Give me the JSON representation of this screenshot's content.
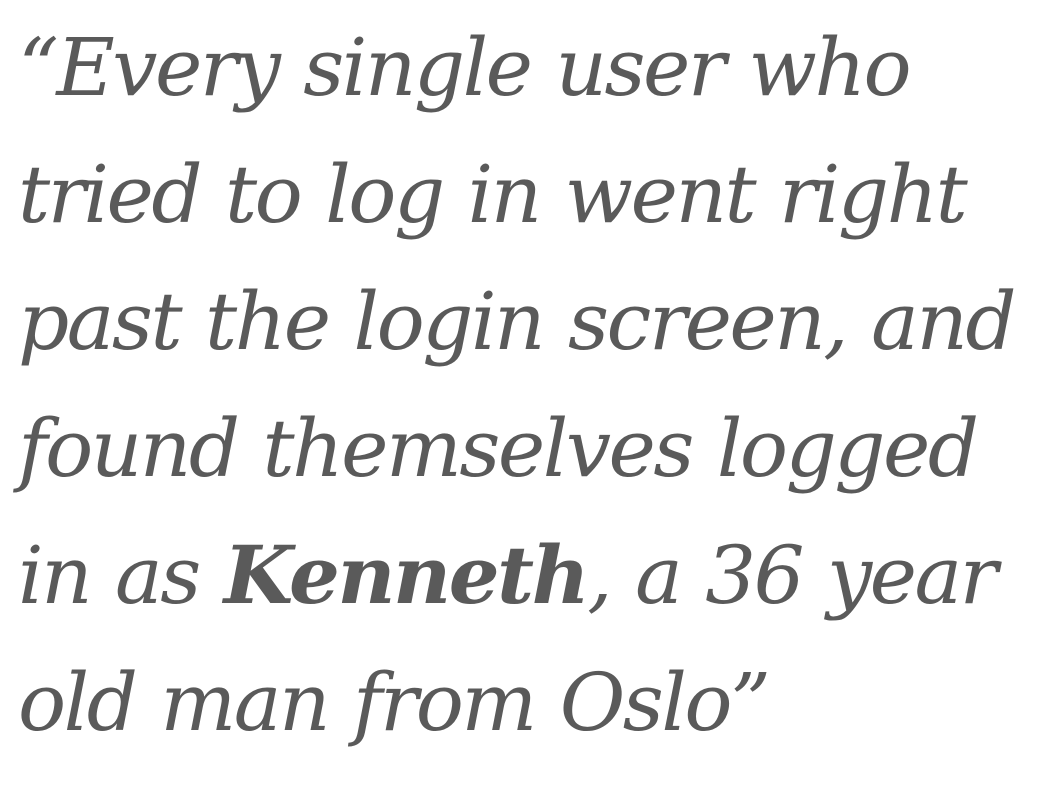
{
  "quote": {
    "open_mark": "“",
    "close_mark": "”",
    "lines": [
      "Every single user who",
      "tried to log in went right",
      "past the login screen, and",
      "found themselves logged",
      "in as ",
      "old man from Oslo"
    ],
    "emphasis": "Kenneth",
    "after_emphasis": ", a 36 year"
  },
  "colors": {
    "text": "#5a5a5a",
    "background": "#ffffff"
  }
}
